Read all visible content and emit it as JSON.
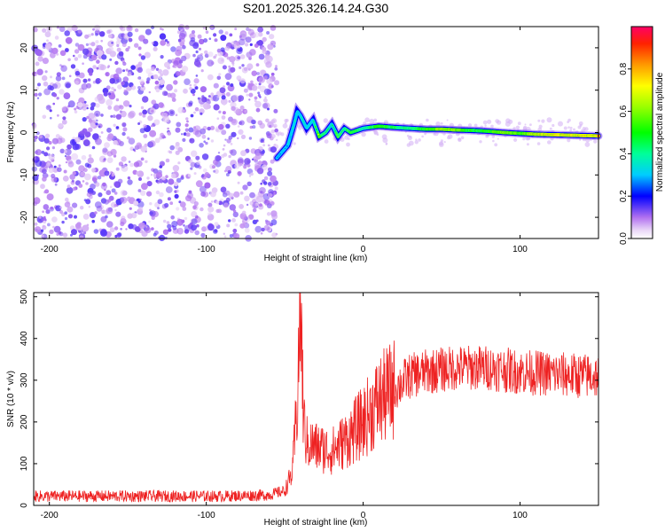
{
  "title": "S201.2025.326.14.24.G30",
  "chart_data": [
    {
      "type": "heatmap",
      "xlabel": "Height of straight line (km)",
      "ylabel": "Frequency (Hz)",
      "xlim": [
        -210,
        150
      ],
      "ylim": [
        -25,
        25
      ],
      "xticks": [
        -200,
        -100,
        0,
        100
      ],
      "yticks": [
        -20,
        -10,
        0,
        10,
        20
      ],
      "colorbar": {
        "label": "Normalized spectral amplitude",
        "range": [
          0,
          1
        ],
        "ticks": [
          0,
          0.2,
          0.4,
          0.6,
          0.8
        ],
        "tick_labels": [
          "0.0",
          "0.2",
          "0.4",
          "0.6",
          "0.8"
        ]
      },
      "noise_region_x": [
        -210,
        -55
      ],
      "signal_track": {
        "x": [
          -55,
          -48,
          -44,
          -42,
          -40,
          -36,
          -32,
          -28,
          -24,
          -20,
          -16,
          -12,
          -8,
          -4,
          0,
          10,
          20,
          30,
          40,
          50,
          60,
          70,
          80,
          90,
          100,
          110,
          120,
          130,
          140,
          150
        ],
        "frequency": [
          -6,
          -3,
          2,
          5,
          4,
          1,
          3,
          -1,
          0,
          2,
          -1,
          1,
          0,
          0.5,
          1,
          1.5,
          1.2,
          1,
          0.8,
          0.8,
          0.6,
          0.5,
          0.3,
          0,
          -0.2,
          -0.4,
          -0.5,
          -0.6,
          -0.7,
          -0.8
        ],
        "amplitude": [
          0.25,
          0.3,
          0.35,
          0.3,
          0.35,
          0.4,
          0.35,
          0.7,
          0.5,
          0.4,
          0.6,
          0.5,
          0.7,
          0.6,
          0.5,
          0.7,
          0.6,
          0.55,
          0.7,
          0.85,
          0.8,
          0.65,
          0.7,
          0.85,
          0.75,
          0.9,
          0.95,
          0.95,
          0.95,
          0.95
        ]
      }
    },
    {
      "type": "line",
      "xlabel": "Height of straight line (km)",
      "ylabel": "SNR (10 * v/v)",
      "xlim": [
        -210,
        150
      ],
      "ylim": [
        0,
        510
      ],
      "xticks": [
        -200,
        -100,
        0,
        100
      ],
      "yticks": [
        0,
        100,
        200,
        300,
        400,
        500
      ],
      "color": "#ee2222",
      "series": [
        {
          "name": "SNR",
          "x": [
            -210,
            -180,
            -150,
            -120,
            -90,
            -60,
            -50,
            -45,
            -42,
            -40,
            -38,
            -36,
            -30,
            -20,
            -10,
            0,
            10,
            20,
            30,
            40,
            50,
            60,
            80,
            100,
            120,
            140,
            150
          ],
          "values": [
            22,
            22,
            22,
            22,
            22,
            25,
            35,
            80,
            250,
            505,
            200,
            150,
            140,
            130,
            160,
            200,
            250,
            280,
            310,
            320,
            325,
            330,
            330,
            320,
            315,
            310,
            310
          ]
        }
      ]
    }
  ]
}
